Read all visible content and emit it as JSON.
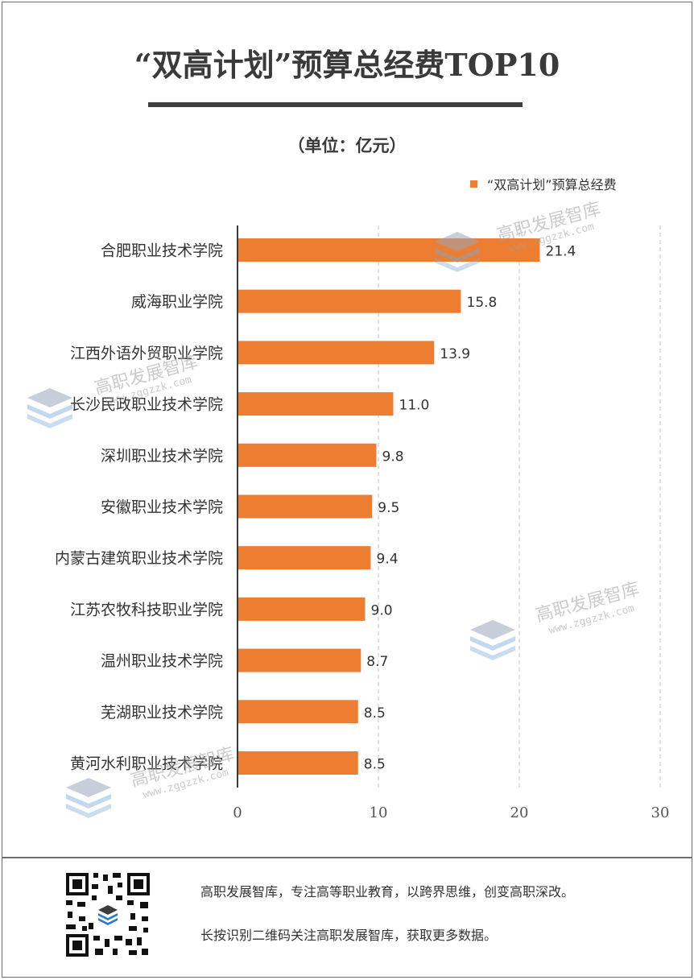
{
  "header": {
    "title": "“双高计划”预算总经费TOP10",
    "unit": "（单位：亿元）"
  },
  "chart_data": {
    "type": "bar",
    "orientation": "horizontal",
    "title": "“双高计划”预算总经费TOP10",
    "categories": [
      "合肥职业技术学院",
      "威海职业学院",
      "江西外语外贸职业学院",
      "长沙民政职业技术学院",
      "深圳职业技术学院",
      "安徽职业技术学院",
      "内蒙古建筑职业技术学院",
      "江苏农牧科技职业学院",
      "温州职业技术学院",
      "芜湖职业技术学院",
      "黄河水利职业技术学院"
    ],
    "series": [
      {
        "name": "“双高计划”预算总经费",
        "values": [
          21.4,
          15.8,
          13.9,
          11.0,
          9.8,
          9.5,
          9.4,
          9.0,
          8.7,
          8.5,
          8.5
        ],
        "value_labels": [
          "21.4",
          "15.8",
          "13.9",
          "11.0",
          "9.8",
          "9.5",
          "9.4",
          "9.0",
          "8.7",
          "8.5",
          "8.5"
        ],
        "color": "#ed7d31"
      }
    ],
    "xlim": [
      0,
      30
    ],
    "x_ticks": [
      "0",
      "10",
      "20",
      "30"
    ],
    "grid": "vertical-dashed",
    "legend_position": "top-right"
  },
  "watermark": {
    "text": "高职发展智库",
    "url": "www.zggzzk.com"
  },
  "footer": {
    "line1": "高职发展智库，专注高等职业教育，以跨界思维，创变高职深改。",
    "line2": "长按识别二维码关注高职发展智库，获取更多数据。"
  }
}
